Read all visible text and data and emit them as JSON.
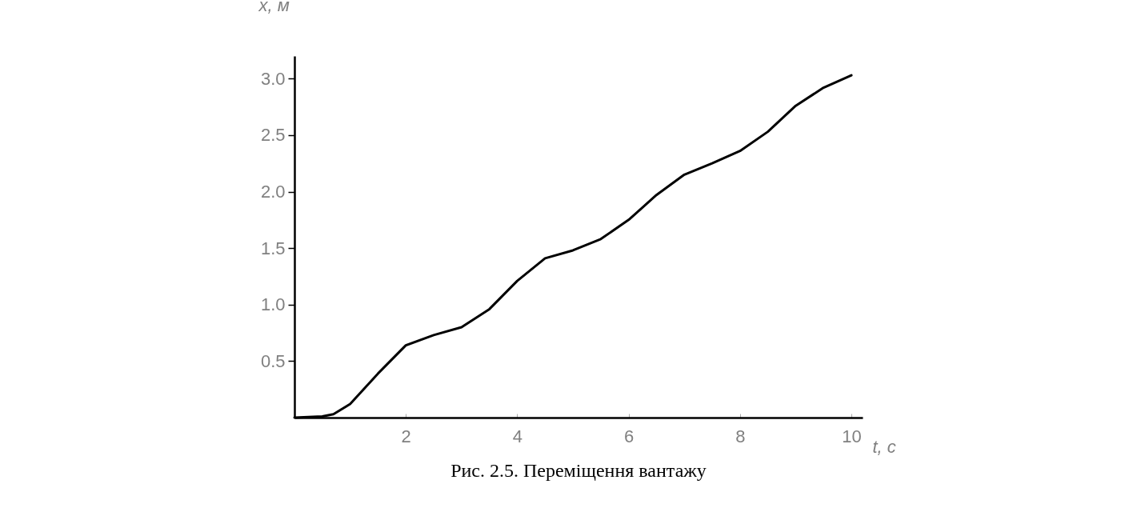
{
  "chart_data": {
    "type": "line",
    "xlabel": "t, c",
    "ylabel": "x, м",
    "annotations": [
      "Рис. 2.5. Переміщення вантажу"
    ],
    "x": [
      0,
      0.5,
      0.7,
      1,
      1.5,
      2,
      2.5,
      3,
      3.5,
      4,
      4.5,
      5,
      5.5,
      6,
      6.5,
      7,
      7.5,
      8,
      8.5,
      9,
      9.5,
      10
    ],
    "series": [
      {
        "color": "#000000",
        "values": [
          0,
          0.01,
          0.03,
          0.12,
          0.39,
          0.64,
          0.73,
          0.8,
          0.96,
          1.21,
          1.41,
          1.48,
          1.58,
          1.75,
          1.97,
          2.15,
          2.25,
          2.36,
          2.53,
          2.76,
          2.92,
          3.03
        ]
      }
    ],
    "xlim": [
      0,
      10.2
    ],
    "ylim": [
      0,
      3.2
    ],
    "xticks": [
      2,
      4,
      6,
      8,
      10
    ],
    "yticks": [
      0.5,
      {
        "value": 1,
        "label": "1.0"
      },
      1.5,
      {
        "value": 2,
        "label": "2.0"
      },
      2.5,
      {
        "value": 3,
        "label": "3.0"
      }
    ]
  }
}
